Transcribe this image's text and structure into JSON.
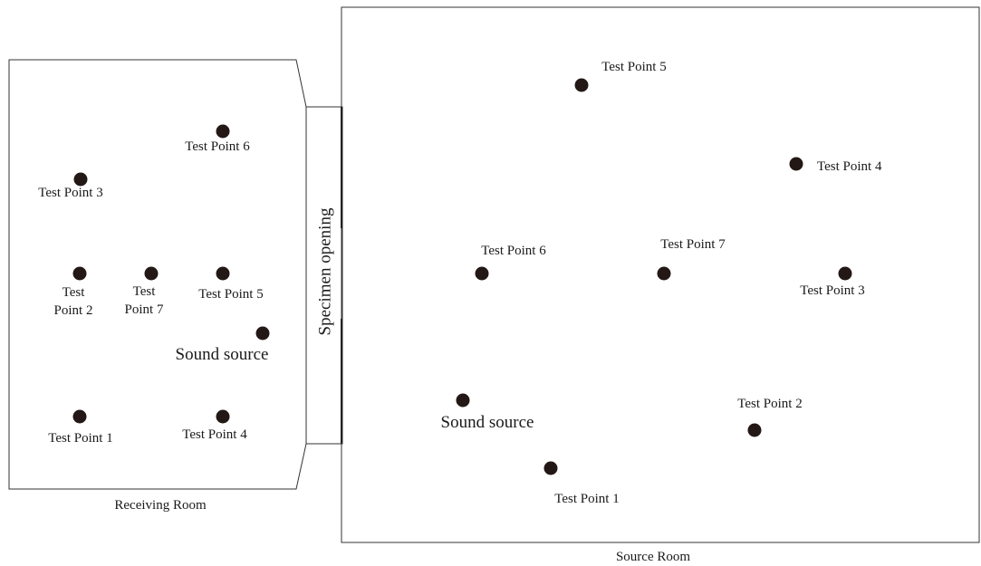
{
  "receiving_room": {
    "caption": "Receiving Room",
    "labels": {
      "tp6": "Test Point 6",
      "tp3": "Test Point 3",
      "tp2_line1": "Test",
      "tp2_line2": "Point 2",
      "tp7_line1": "Test",
      "tp7_line2": "Point 7",
      "tp5": "Test Point 5",
      "sound": "Sound source",
      "tp1": "Test Point 1",
      "tp4": "Test Point 4"
    }
  },
  "specimen": {
    "label": "Specimen opening"
  },
  "source_room": {
    "caption": "Source Room",
    "labels": {
      "tp5": "Test Point 5",
      "tp4": "Test Point 4",
      "tp6": "Test Point 6",
      "tp7": "Test Point 7",
      "tp3": "Test Point 3",
      "sound": "Sound source",
      "tp2": "Test Point 2",
      "tp1": "Test Point 1"
    }
  },
  "colors": {
    "dot": "#231815",
    "line": "#333333",
    "text": "#1a1a1a"
  }
}
